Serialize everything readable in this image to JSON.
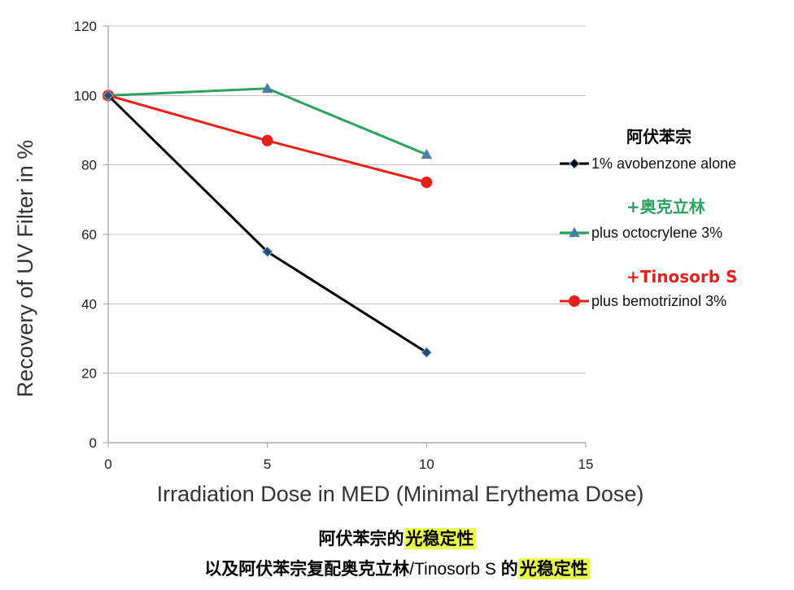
{
  "chart_data": {
    "type": "line",
    "x": [
      0,
      5,
      10
    ],
    "xlabel": "Irradiation Dose in MED (Minimal Erythema Dose)",
    "ylabel": "Recovery of UV Filter  in %",
    "xlim": [
      0,
      15
    ],
    "ylim": [
      0,
      120
    ],
    "xticks": [
      "0",
      "5",
      "10",
      "15"
    ],
    "yticks": [
      "0",
      "20",
      "40",
      "60",
      "80",
      "100",
      "120"
    ],
    "grid": "horizontal",
    "legend_position": "right",
    "series": [
      {
        "name": "1% avobenzone alone",
        "values": [
          100,
          55,
          26
        ],
        "color": "#000000",
        "marker": "diamond",
        "marker_fill": "#1f4e79"
      },
      {
        "name": "plus octocrylene 3%",
        "values": [
          100,
          102,
          83
        ],
        "color": "#2ca25f",
        "marker": "triangle",
        "marker_fill": "#4a7ea8"
      },
      {
        "name": "plus bemotrizinol 3%",
        "values": [
          100,
          87,
          75
        ],
        "color": "#e8201c",
        "marker": "circle",
        "marker_fill": "#e8201c"
      }
    ],
    "annotations": [
      {
        "text": "阿伏苯宗",
        "color": "#000000"
      },
      {
        "text": "+奥克立林",
        "color": "#2ca25f"
      },
      {
        "text": "+Tinosorb S",
        "color": "#e8201c"
      }
    ]
  },
  "caption": {
    "line1_prefix": "阿伏苯宗的",
    "line1_highlight": "光稳定性",
    "line2_prefix": "以及阿伏苯宗复配奥克立林",
    "line2_plain": "/Tinosorb S ",
    "line2_mid": "的",
    "line2_highlight": "光稳定性"
  },
  "colors": {
    "highlight": "#eaff4a",
    "grid": "#bdbdbd",
    "axis": "#9e9e9e"
  }
}
